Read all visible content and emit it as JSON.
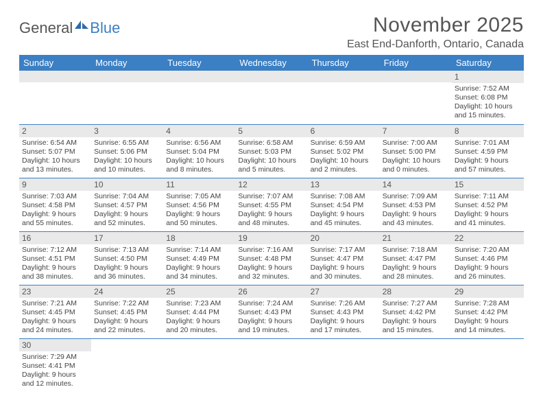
{
  "logo": {
    "general": "General",
    "blue": "Blue"
  },
  "header": {
    "title": "November 2025",
    "subtitle": "East End-Danforth, Ontario, Canada"
  },
  "colors": {
    "header_bg": "#3b7fc4",
    "header_text": "#ffffff",
    "daynum_bg": "#e9e9e9",
    "row_border": "#3b7fc4",
    "text": "#444444",
    "title": "#555555"
  },
  "days_of_week": [
    "Sunday",
    "Monday",
    "Tuesday",
    "Wednesday",
    "Thursday",
    "Friday",
    "Saturday"
  ],
  "weeks": [
    [
      {
        "num": "",
        "sunrise": "",
        "sunset": "",
        "daylight": ""
      },
      {
        "num": "",
        "sunrise": "",
        "sunset": "",
        "daylight": ""
      },
      {
        "num": "",
        "sunrise": "",
        "sunset": "",
        "daylight": ""
      },
      {
        "num": "",
        "sunrise": "",
        "sunset": "",
        "daylight": ""
      },
      {
        "num": "",
        "sunrise": "",
        "sunset": "",
        "daylight": ""
      },
      {
        "num": "",
        "sunrise": "",
        "sunset": "",
        "daylight": ""
      },
      {
        "num": "1",
        "sunrise": "Sunrise: 7:52 AM",
        "sunset": "Sunset: 6:08 PM",
        "daylight": "Daylight: 10 hours and 15 minutes."
      }
    ],
    [
      {
        "num": "2",
        "sunrise": "Sunrise: 6:54 AM",
        "sunset": "Sunset: 5:07 PM",
        "daylight": "Daylight: 10 hours and 13 minutes."
      },
      {
        "num": "3",
        "sunrise": "Sunrise: 6:55 AM",
        "sunset": "Sunset: 5:06 PM",
        "daylight": "Daylight: 10 hours and 10 minutes."
      },
      {
        "num": "4",
        "sunrise": "Sunrise: 6:56 AM",
        "sunset": "Sunset: 5:04 PM",
        "daylight": "Daylight: 10 hours and 8 minutes."
      },
      {
        "num": "5",
        "sunrise": "Sunrise: 6:58 AM",
        "sunset": "Sunset: 5:03 PM",
        "daylight": "Daylight: 10 hours and 5 minutes."
      },
      {
        "num": "6",
        "sunrise": "Sunrise: 6:59 AM",
        "sunset": "Sunset: 5:02 PM",
        "daylight": "Daylight: 10 hours and 2 minutes."
      },
      {
        "num": "7",
        "sunrise": "Sunrise: 7:00 AM",
        "sunset": "Sunset: 5:00 PM",
        "daylight": "Daylight: 10 hours and 0 minutes."
      },
      {
        "num": "8",
        "sunrise": "Sunrise: 7:01 AM",
        "sunset": "Sunset: 4:59 PM",
        "daylight": "Daylight: 9 hours and 57 minutes."
      }
    ],
    [
      {
        "num": "9",
        "sunrise": "Sunrise: 7:03 AM",
        "sunset": "Sunset: 4:58 PM",
        "daylight": "Daylight: 9 hours and 55 minutes."
      },
      {
        "num": "10",
        "sunrise": "Sunrise: 7:04 AM",
        "sunset": "Sunset: 4:57 PM",
        "daylight": "Daylight: 9 hours and 52 minutes."
      },
      {
        "num": "11",
        "sunrise": "Sunrise: 7:05 AM",
        "sunset": "Sunset: 4:56 PM",
        "daylight": "Daylight: 9 hours and 50 minutes."
      },
      {
        "num": "12",
        "sunrise": "Sunrise: 7:07 AM",
        "sunset": "Sunset: 4:55 PM",
        "daylight": "Daylight: 9 hours and 48 minutes."
      },
      {
        "num": "13",
        "sunrise": "Sunrise: 7:08 AM",
        "sunset": "Sunset: 4:54 PM",
        "daylight": "Daylight: 9 hours and 45 minutes."
      },
      {
        "num": "14",
        "sunrise": "Sunrise: 7:09 AM",
        "sunset": "Sunset: 4:53 PM",
        "daylight": "Daylight: 9 hours and 43 minutes."
      },
      {
        "num": "15",
        "sunrise": "Sunrise: 7:11 AM",
        "sunset": "Sunset: 4:52 PM",
        "daylight": "Daylight: 9 hours and 41 minutes."
      }
    ],
    [
      {
        "num": "16",
        "sunrise": "Sunrise: 7:12 AM",
        "sunset": "Sunset: 4:51 PM",
        "daylight": "Daylight: 9 hours and 38 minutes."
      },
      {
        "num": "17",
        "sunrise": "Sunrise: 7:13 AM",
        "sunset": "Sunset: 4:50 PM",
        "daylight": "Daylight: 9 hours and 36 minutes."
      },
      {
        "num": "18",
        "sunrise": "Sunrise: 7:14 AM",
        "sunset": "Sunset: 4:49 PM",
        "daylight": "Daylight: 9 hours and 34 minutes."
      },
      {
        "num": "19",
        "sunrise": "Sunrise: 7:16 AM",
        "sunset": "Sunset: 4:48 PM",
        "daylight": "Daylight: 9 hours and 32 minutes."
      },
      {
        "num": "20",
        "sunrise": "Sunrise: 7:17 AM",
        "sunset": "Sunset: 4:47 PM",
        "daylight": "Daylight: 9 hours and 30 minutes."
      },
      {
        "num": "21",
        "sunrise": "Sunrise: 7:18 AM",
        "sunset": "Sunset: 4:47 PM",
        "daylight": "Daylight: 9 hours and 28 minutes."
      },
      {
        "num": "22",
        "sunrise": "Sunrise: 7:20 AM",
        "sunset": "Sunset: 4:46 PM",
        "daylight": "Daylight: 9 hours and 26 minutes."
      }
    ],
    [
      {
        "num": "23",
        "sunrise": "Sunrise: 7:21 AM",
        "sunset": "Sunset: 4:45 PM",
        "daylight": "Daylight: 9 hours and 24 minutes."
      },
      {
        "num": "24",
        "sunrise": "Sunrise: 7:22 AM",
        "sunset": "Sunset: 4:45 PM",
        "daylight": "Daylight: 9 hours and 22 minutes."
      },
      {
        "num": "25",
        "sunrise": "Sunrise: 7:23 AM",
        "sunset": "Sunset: 4:44 PM",
        "daylight": "Daylight: 9 hours and 20 minutes."
      },
      {
        "num": "26",
        "sunrise": "Sunrise: 7:24 AM",
        "sunset": "Sunset: 4:43 PM",
        "daylight": "Daylight: 9 hours and 19 minutes."
      },
      {
        "num": "27",
        "sunrise": "Sunrise: 7:26 AM",
        "sunset": "Sunset: 4:43 PM",
        "daylight": "Daylight: 9 hours and 17 minutes."
      },
      {
        "num": "28",
        "sunrise": "Sunrise: 7:27 AM",
        "sunset": "Sunset: 4:42 PM",
        "daylight": "Daylight: 9 hours and 15 minutes."
      },
      {
        "num": "29",
        "sunrise": "Sunrise: 7:28 AM",
        "sunset": "Sunset: 4:42 PM",
        "daylight": "Daylight: 9 hours and 14 minutes."
      }
    ],
    [
      {
        "num": "30",
        "sunrise": "Sunrise: 7:29 AM",
        "sunset": "Sunset: 4:41 PM",
        "daylight": "Daylight: 9 hours and 12 minutes."
      },
      {
        "num": "",
        "sunrise": "",
        "sunset": "",
        "daylight": ""
      },
      {
        "num": "",
        "sunrise": "",
        "sunset": "",
        "daylight": ""
      },
      {
        "num": "",
        "sunrise": "",
        "sunset": "",
        "daylight": ""
      },
      {
        "num": "",
        "sunrise": "",
        "sunset": "",
        "daylight": ""
      },
      {
        "num": "",
        "sunrise": "",
        "sunset": "",
        "daylight": ""
      },
      {
        "num": "",
        "sunrise": "",
        "sunset": "",
        "daylight": ""
      }
    ]
  ]
}
